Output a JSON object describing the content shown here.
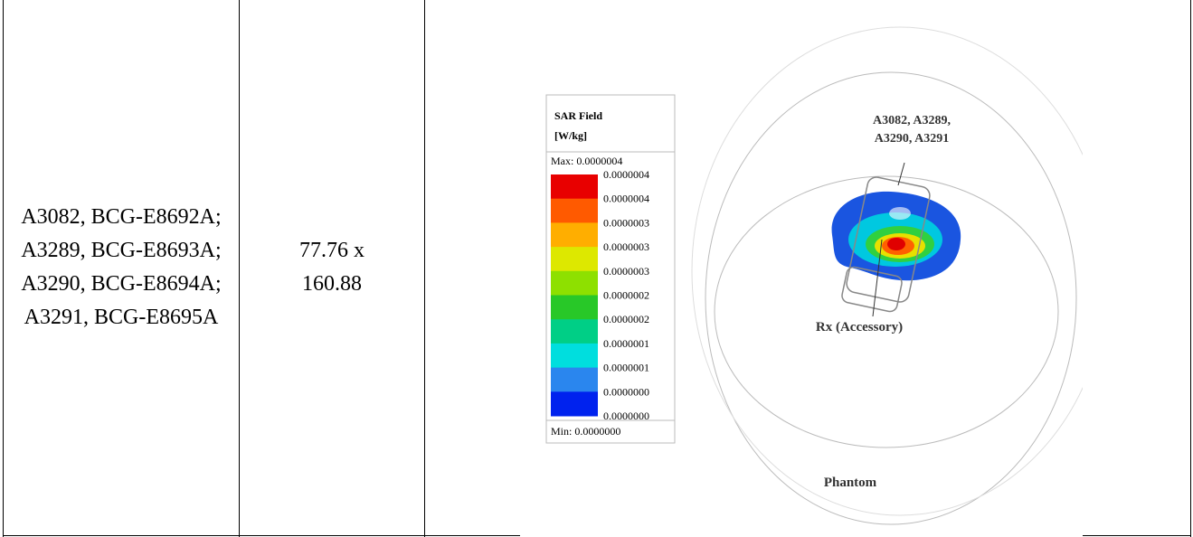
{
  "table": {
    "rows": [
      [
        "A3082, BCG-E8692A; A3289, BCG-E8693A; A3290, BCG-E8694A; A3291, BCG-E8695A",
        "77.76 x 160.88"
      ]
    ]
  },
  "figure": {
    "legend": {
      "title": "SAR Field",
      "unit": "[W/kg]",
      "max": "Max:  0.0000004",
      "min": "Min:  0.0000000",
      "levels": [
        "0.0000004",
        "0.0000004",
        "0.0000003",
        "0.0000003",
        "0.0000003",
        "0.0000002",
        "0.0000002",
        "0.0000001",
        "0.0000001",
        "0.0000000",
        "0.0000000"
      ],
      "colors": [
        "#e80000",
        "#ff5a00",
        "#ffae00",
        "#dde800",
        "#8ee000",
        "#28c828",
        "#00cf86",
        "#00dede",
        "#2a86ee",
        "#0022ee"
      ]
    },
    "labels": {
      "device_line1": "A3082, A3289,",
      "device_line2": "A3290, A3291",
      "accessory": "Rx (Accessory)",
      "phantom": "Phantom"
    }
  }
}
